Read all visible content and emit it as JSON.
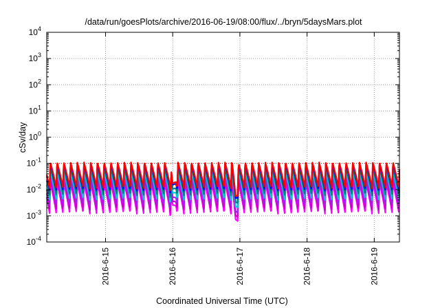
{
  "chart_data": {
    "type": "line",
    "title": "/data/run/goesPlots/archive/2016-06-19/08:00/flux/../bryn/5daysMars.plot",
    "xlabel": "Coordinated Universal Time (UTC)",
    "ylabel": "cSv/day",
    "y_scale": "log",
    "ylim": [
      0.0001,
      10000
    ],
    "y_ticks": [
      {
        "value": 0.0001,
        "base": "10",
        "exp": "-4"
      },
      {
        "value": 0.001,
        "base": "10",
        "exp": "-3"
      },
      {
        "value": 0.01,
        "base": "10",
        "exp": "-2"
      },
      {
        "value": 0.1,
        "base": "10",
        "exp": "-1"
      },
      {
        "value": 1,
        "base": "10",
        "exp": "0"
      },
      {
        "value": 10,
        "base": "10",
        "exp": "1"
      },
      {
        "value": 100,
        "base": "10",
        "exp": "2"
      },
      {
        "value": 1000,
        "base": "10",
        "exp": "3"
      },
      {
        "value": 10000,
        "base": "10",
        "exp": "4"
      }
    ],
    "x_range": [
      "2016-06-14T03:00",
      "2016-06-19T09:00"
    ],
    "x_ticks": [
      {
        "value": "2016-06-15",
        "label": "2016-6-15"
      },
      {
        "value": "2016-06-16",
        "label": "2016-6-16"
      },
      {
        "value": "2016-06-17",
        "label": "2016-6-17"
      },
      {
        "value": "2016-06-18",
        "label": "2016-6-18"
      },
      {
        "value": "2016-06-19",
        "label": "2016-6-19"
      }
    ],
    "grid": true,
    "reference_line": {
      "value": 0.1,
      "color": "#ff0000",
      "style": "dotted"
    },
    "series": [
      {
        "color": "#ff0000",
        "peak": 0.11,
        "trough": 0.011
      },
      {
        "color": "#0000ff",
        "peak": 0.1,
        "trough": 0.009
      },
      {
        "color": "#008080",
        "peak": 0.07,
        "trough": 0.006
      },
      {
        "color": "#00cccc",
        "peak": 0.05,
        "trough": 0.004
      },
      {
        "color": "#a020f0",
        "peak": 0.035,
        "trough": 0.0025
      },
      {
        "color": "#cc00cc",
        "peak": 0.025,
        "trough": 0.0017
      },
      {
        "color": "#ff00ff",
        "peak": 0.018,
        "trough": 0.0012
      }
    ]
  }
}
